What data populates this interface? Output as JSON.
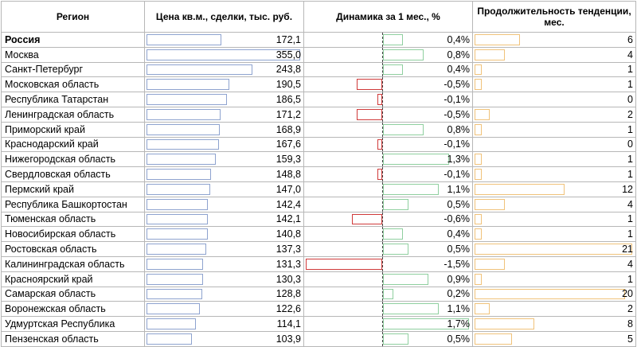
{
  "headers": {
    "region": "Регион",
    "price": "Цена кв.м., сделки, тыс. руб.",
    "change": "Динамика за 1 мес., %",
    "duration": "Продолжительность тенденции, мес."
  },
  "colors": {
    "price_bar": "#8ea3cf",
    "positive_bar": "#8fcf9f",
    "negative_bar": "#d03a3a",
    "duration_bar": "#f0c27a"
  },
  "scales": {
    "price_max": 355.0,
    "change_abs_max": 1.7,
    "duration_max": 21
  },
  "rows": [
    {
      "region": "Россия",
      "price": "172,1",
      "change": "0,4%",
      "duration": "6",
      "bold": true,
      "price_value": 172.1,
      "change_value": 0.4,
      "duration_value": 6
    },
    {
      "region": "Москва",
      "price": "355,0",
      "change": "0,8%",
      "duration": "4",
      "price_value": 355.0,
      "change_value": 0.8,
      "duration_value": 4
    },
    {
      "region": "Санкт-Петербург",
      "price": "243,8",
      "change": "0,4%",
      "duration": "1",
      "price_value": 243.8,
      "change_value": 0.4,
      "duration_value": 1
    },
    {
      "region": "Московская область",
      "price": "190,5",
      "change": "-0,5%",
      "duration": "1",
      "price_value": 190.5,
      "change_value": -0.5,
      "duration_value": 1
    },
    {
      "region": "Республика Татарстан",
      "price": "186,5",
      "change": "-0,1%",
      "duration": "0",
      "price_value": 186.5,
      "change_value": -0.1,
      "duration_value": 0
    },
    {
      "region": "Ленинградская область",
      "price": "171,2",
      "change": "-0,5%",
      "duration": "2",
      "price_value": 171.2,
      "change_value": -0.5,
      "duration_value": 2
    },
    {
      "region": "Приморский край",
      "price": "168,9",
      "change": "0,8%",
      "duration": "1",
      "price_value": 168.9,
      "change_value": 0.8,
      "duration_value": 1
    },
    {
      "region": "Краснодарский край",
      "price": "167,6",
      "change": "-0,1%",
      "duration": "0",
      "price_value": 167.6,
      "change_value": -0.1,
      "duration_value": 0
    },
    {
      "region": "Нижегородская область",
      "price": "159,3",
      "change": "1,3%",
      "duration": "1",
      "price_value": 159.3,
      "change_value": 1.3,
      "duration_value": 1
    },
    {
      "region": "Свердловская область",
      "price": "148,8",
      "change": "-0,1%",
      "duration": "1",
      "price_value": 148.8,
      "change_value": -0.1,
      "duration_value": 1
    },
    {
      "region": "Пермский край",
      "price": "147,0",
      "change": "1,1%",
      "duration": "12",
      "price_value": 147.0,
      "change_value": 1.1,
      "duration_value": 12
    },
    {
      "region": "Республика Башкортостан",
      "price": "142,4",
      "change": "0,5%",
      "duration": "4",
      "price_value": 142.4,
      "change_value": 0.5,
      "duration_value": 4
    },
    {
      "region": "Тюменская область",
      "price": "142,1",
      "change": "-0,6%",
      "duration": "1",
      "price_value": 142.1,
      "change_value": -0.6,
      "duration_value": 1
    },
    {
      "region": "Новосибирская область",
      "price": "140,8",
      "change": "0,4%",
      "duration": "1",
      "price_value": 140.8,
      "change_value": 0.4,
      "duration_value": 1
    },
    {
      "region": "Ростовская область",
      "price": "137,3",
      "change": "0,5%",
      "duration": "21",
      "price_value": 137.3,
      "change_value": 0.5,
      "duration_value": 21
    },
    {
      "region": "Калининградская область",
      "price": "131,3",
      "change": "-1,5%",
      "duration": "4",
      "price_value": 131.3,
      "change_value": -1.5,
      "duration_value": 4
    },
    {
      "region": "Красноярский край",
      "price": "130,3",
      "change": "0,9%",
      "duration": "1",
      "price_value": 130.3,
      "change_value": 0.9,
      "duration_value": 1
    },
    {
      "region": "Самарская область",
      "price": "128,8",
      "change": "0,2%",
      "duration": "20",
      "price_value": 128.8,
      "change_value": 0.2,
      "duration_value": 20
    },
    {
      "region": "Воронежская область",
      "price": "122,6",
      "change": "1,1%",
      "duration": "2",
      "price_value": 122.6,
      "change_value": 1.1,
      "duration_value": 2
    },
    {
      "region": "Удмуртская Республика",
      "price": "114,1",
      "change": "1,7%",
      "duration": "8",
      "price_value": 114.1,
      "change_value": 1.7,
      "duration_value": 8
    },
    {
      "region": "Пензенская область",
      "price": "103,9",
      "change": "0,5%",
      "duration": "5",
      "price_value": 103.9,
      "change_value": 0.5,
      "duration_value": 5
    }
  ]
}
